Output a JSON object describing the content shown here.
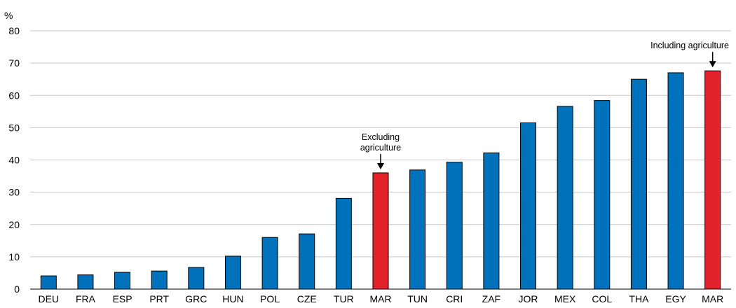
{
  "chart_data": {
    "type": "bar",
    "y_unit": "%",
    "ylim": [
      0,
      80
    ],
    "yticks": [
      0,
      10,
      20,
      30,
      40,
      50,
      60,
      70,
      80
    ],
    "grid": true,
    "categories": [
      "DEU",
      "FRA",
      "ESP",
      "PRT",
      "GRC",
      "HUN",
      "POL",
      "CZE",
      "TUR",
      "MAR",
      "TUN",
      "CRI",
      "ZAF",
      "JOR",
      "MEX",
      "COL",
      "THA",
      "EGY",
      "MAR"
    ],
    "values": [
      4.1,
      4.4,
      5.2,
      5.6,
      6.7,
      10.2,
      16.0,
      17.1,
      28.1,
      36.0,
      36.9,
      39.3,
      42.2,
      51.5,
      56.6,
      58.4,
      65.0,
      67.0,
      67.6
    ],
    "highlight_indices": [
      9,
      18
    ],
    "colors": {
      "default_bar": "#0072BC",
      "highlight_bar": "#E3232C",
      "grid": "#C8C8C8",
      "axis": "#000000"
    },
    "annotations": [
      {
        "bar_index": 9,
        "lines": [
          "Excluding",
          "agriculture"
        ]
      },
      {
        "bar_index": 18,
        "lines": [
          "Including agriculture"
        ]
      }
    ]
  }
}
